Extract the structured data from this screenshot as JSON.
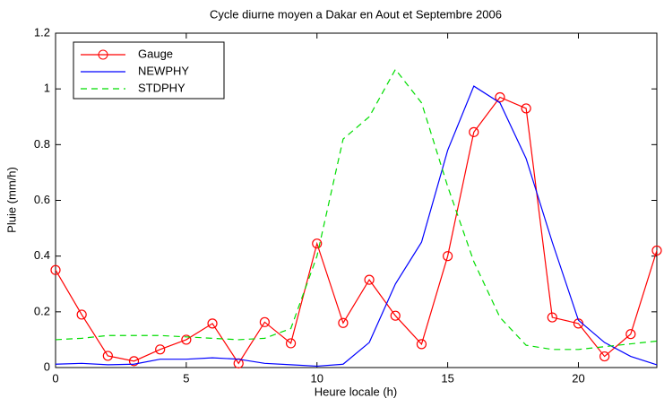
{
  "chart_data": {
    "type": "line",
    "title": "Cycle diurne moyen a Dakar en Aout et Septembre 2006",
    "x_label": "Heure locale (h)",
    "y_label": "Pluie (mm/h)",
    "x": [
      0,
      1,
      2,
      3,
      4,
      5,
      6,
      7,
      8,
      9,
      10,
      11,
      12,
      13,
      14,
      15,
      16,
      17,
      18,
      19,
      20,
      21,
      22,
      23
    ],
    "series": [
      {
        "name": "Gauge",
        "color": "#ff0000",
        "marker": "circle",
        "dashed": false,
        "values": [
          0.35,
          0.19,
          0.042,
          0.023,
          0.065,
          0.1,
          0.158,
          0.015,
          0.163,
          0.087,
          0.445,
          0.16,
          0.315,
          0.186,
          0.084,
          0.4,
          0.845,
          0.97,
          0.93,
          0.18,
          0.158,
          0.04,
          0.12,
          0.42
        ]
      },
      {
        "name": "NEWPHY",
        "color": "#0000ff",
        "dashed": false,
        "values": [
          0.012,
          0.015,
          0.01,
          0.012,
          0.03,
          0.03,
          0.035,
          0.03,
          0.015,
          0.01,
          0.005,
          0.012,
          0.09,
          0.3,
          0.45,
          0.78,
          1.01,
          0.95,
          0.75,
          0.45,
          0.17,
          0.09,
          0.04,
          0.01
        ]
      },
      {
        "name": "STDPHY",
        "color": "#00dd00",
        "dashed": true,
        "values": [
          0.1,
          0.105,
          0.115,
          0.115,
          0.115,
          0.11,
          0.105,
          0.1,
          0.105,
          0.14,
          0.4,
          0.82,
          0.9,
          1.07,
          0.95,
          0.65,
          0.38,
          0.18,
          0.08,
          0.065,
          0.065,
          0.075,
          0.085,
          0.095
        ]
      }
    ],
    "xlim": [
      0,
      23
    ],
    "xticks": [
      0,
      5,
      10,
      15,
      20
    ],
    "ylim": [
      0,
      1.2
    ],
    "yticks": [
      0,
      0.2,
      0.4,
      0.6,
      0.8,
      1,
      1.2
    ],
    "legend": "upper left"
  }
}
